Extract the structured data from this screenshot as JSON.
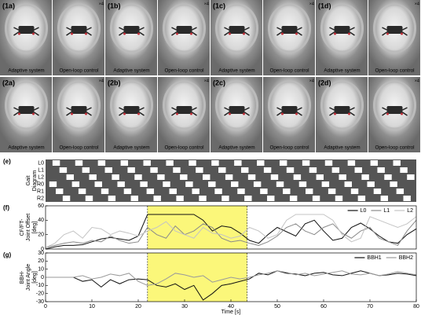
{
  "photo_panels": [
    {
      "label": "(1a)",
      "captions": [
        "Adaptive system",
        "Open-loop control"
      ],
      "speed": "×4"
    },
    {
      "label": "(1b)",
      "captions": [
        "Adaptive system",
        "Open-loop control"
      ],
      "speed": "×4"
    },
    {
      "label": "(1c)",
      "captions": [
        "Adaptive system",
        "Open-loop control"
      ],
      "speed": "×4"
    },
    {
      "label": "(1d)",
      "captions": [
        "Adaptive system",
        "Open-loop control"
      ],
      "speed": "×4"
    },
    {
      "label": "(2a)",
      "captions": [
        "Adaptive system",
        "Open-loop control"
      ],
      "speed": "×4"
    },
    {
      "label": "(2b)",
      "captions": [
        "Adaptive system",
        "Open-loop control"
      ],
      "speed": "×4"
    },
    {
      "label": "(2c)",
      "captions": [
        "Adaptive system",
        "Open-loop control"
      ],
      "speed": "×4"
    },
    {
      "label": "(2d)",
      "captions": [
        "Adaptive system",
        "Open-loop control"
      ],
      "speed": "×4"
    }
  ],
  "chart_data": [
    {
      "type": "gait",
      "label": "(e)",
      "ylabel_lines": [
        "Gait",
        "Diagram"
      ],
      "xlim": [
        0,
        80
      ],
      "legs": [
        {
          "name": "L0",
          "duration": 1.6,
          "starts": [
            1.5,
            6.4,
            11.3,
            16.2,
            21.1,
            26,
            30.9,
            35.8,
            40.7,
            45.6,
            50.5,
            55.4,
            60.3,
            65.2,
            70.1,
            75
          ]
        },
        {
          "name": "L1",
          "duration": 1.6,
          "starts": [
            3,
            7.9,
            12.8,
            17.7,
            22.6,
            27.5,
            32.4,
            37.3,
            42.2,
            47.1,
            52,
            56.9,
            61.8,
            66.7,
            71.6,
            76.5
          ]
        },
        {
          "name": "L2",
          "duration": 1.6,
          "starts": [
            4.5,
            9.4,
            14.3,
            19.2,
            24.1,
            29,
            33.9,
            38.8,
            43.7,
            48.6,
            53.5,
            58.4,
            63.3,
            68.2,
            73.1,
            78
          ]
        },
        {
          "name": "R0",
          "duration": 1.6,
          "starts": [
            0.8,
            5.7,
            10.6,
            15.5,
            20.4,
            25.3,
            30.2,
            35.1,
            40,
            44.9,
            49.8,
            54.7,
            59.6,
            64.5,
            69.4,
            74.3
          ]
        },
        {
          "name": "R1",
          "duration": 1.6,
          "starts": [
            2.2,
            7.1,
            12,
            16.9,
            21.8,
            26.7,
            31.6,
            36.5,
            41.4,
            46.3,
            51.2,
            56.1,
            61,
            65.9,
            70.8,
            75.7
          ]
        },
        {
          "name": "R2",
          "duration": 1.6,
          "starts": [
            3.7,
            8.6,
            13.5,
            18.4,
            23.3,
            28.2,
            33.1,
            38,
            42.9,
            47.8,
            52.7,
            57.6,
            62.5,
            67.4,
            72.3,
            77.2
          ]
        }
      ]
    },
    {
      "type": "line",
      "label": "(f)",
      "ylabel_lines": [
        "CF/FT-",
        "Joint Offset",
        "[deg]"
      ],
      "xlim": [
        0,
        80
      ],
      "ylim": [
        0,
        60
      ],
      "yticks": [
        0,
        20,
        40,
        60
      ],
      "highlight": [
        22,
        43.5
      ],
      "x": [
        0,
        2,
        4,
        6,
        8,
        10,
        12,
        14,
        16,
        18,
        20,
        22,
        24,
        26,
        28,
        30,
        32,
        34,
        36,
        38,
        40,
        42,
        44,
        46,
        48,
        50,
        52,
        54,
        56,
        58,
        60,
        62,
        64,
        66,
        68,
        70,
        72,
        74,
        76,
        78,
        80
      ],
      "series": [
        {
          "name": "L0",
          "color": "#111111",
          "values": [
            0,
            3,
            5,
            5,
            6,
            10,
            14,
            16,
            14,
            12,
            18,
            48,
            48,
            48,
            48,
            48,
            48,
            40,
            25,
            32,
            30,
            22,
            12,
            8,
            20,
            30,
            24,
            18,
            35,
            40,
            25,
            12,
            15,
            30,
            36,
            28,
            18,
            10,
            8,
            20,
            28
          ]
        },
        {
          "name": "L1",
          "color": "#8a8a8a",
          "values": [
            2,
            5,
            8,
            10,
            8,
            12,
            10,
            18,
            12,
            8,
            10,
            30,
            20,
            15,
            32,
            20,
            25,
            35,
            30,
            15,
            10,
            12,
            8,
            5,
            10,
            18,
            30,
            35,
            25,
            20,
            30,
            35,
            22,
            15,
            25,
            30,
            15,
            10,
            5,
            25,
            40
          ]
        },
        {
          "name": "L2",
          "color": "#c4c4c4",
          "values": [
            2,
            8,
            20,
            25,
            15,
            30,
            28,
            20,
            25,
            22,
            18,
            25,
            30,
            38,
            25,
            20,
            15,
            30,
            22,
            20,
            15,
            18,
            30,
            25,
            15,
            20,
            40,
            48,
            48,
            48,
            48,
            40,
            20,
            10,
            15,
            45,
            40,
            35,
            30,
            35,
            45
          ]
        }
      ]
    },
    {
      "type": "line",
      "label": "(g)",
      "ylabel_lines": [
        "BBH-",
        "Joint Angle",
        "[deg]"
      ],
      "xlabel": "Time [s]",
      "xlim": [
        0,
        80
      ],
      "xticks": [
        0,
        10,
        20,
        30,
        40,
        50,
        60,
        70,
        80
      ],
      "ylim": [
        -30,
        30
      ],
      "yticks": [
        -30,
        -20,
        -10,
        0,
        10,
        20,
        30
      ],
      "highlight": [
        22,
        43.5
      ],
      "x": [
        0,
        2,
        4,
        6,
        8,
        10,
        12,
        14,
        16,
        18,
        20,
        22,
        24,
        26,
        28,
        30,
        32,
        34,
        36,
        38,
        40,
        42,
        44,
        46,
        48,
        50,
        52,
        54,
        56,
        58,
        60,
        62,
        64,
        66,
        68,
        70,
        72,
        74,
        76,
        78,
        80
      ],
      "series": [
        {
          "name": "BBH1",
          "color": "#111111",
          "values": [
            0,
            0,
            0,
            0,
            -5,
            -3,
            -12,
            -3,
            -8,
            -3,
            -2,
            -3,
            -10,
            -12,
            -8,
            -15,
            -10,
            -28,
            -20,
            -10,
            -8,
            -5,
            -2,
            5,
            3,
            8,
            5,
            4,
            2,
            5,
            6,
            3,
            2,
            5,
            8,
            5,
            2,
            3,
            5,
            4,
            2
          ]
        },
        {
          "name": "BBH2",
          "color": "#9a9a9a",
          "values": [
            0,
            0,
            0,
            0,
            2,
            -2,
            0,
            4,
            2,
            5,
            -5,
            -10,
            -8,
            -2,
            5,
            3,
            0,
            2,
            -6,
            -3,
            0,
            -2,
            0,
            3,
            5,
            8,
            6,
            3,
            5,
            2,
            4,
            6,
            8,
            4,
            3,
            5,
            2,
            4,
            7,
            5,
            3
          ]
        }
      ]
    }
  ]
}
